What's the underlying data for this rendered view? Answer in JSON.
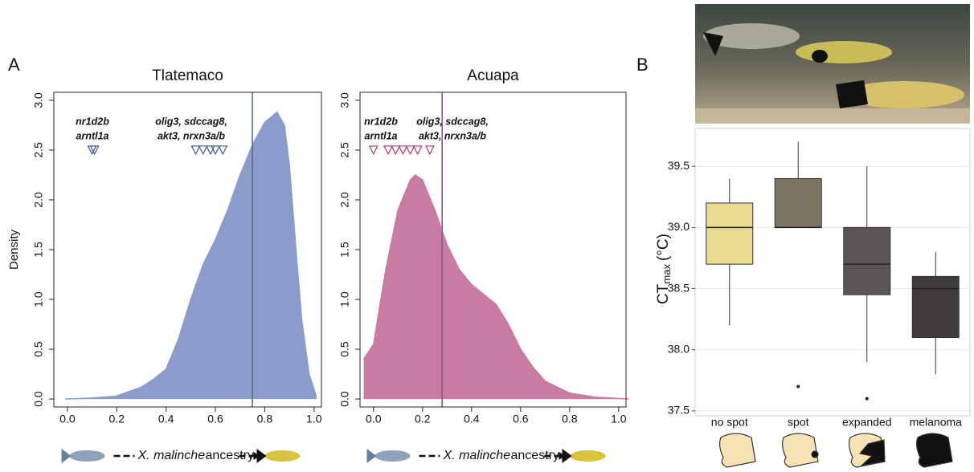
{
  "panel_labels": [
    "A",
    "B"
  ],
  "chart_data": [
    {
      "type": "density",
      "title": "Tlatemaco",
      "ylabel": "Density",
      "xlabel_species": "X. malinche",
      "xlabel": "ancestry",
      "color": "#8a9ccb",
      "line_color": "#5a6c86",
      "marker_color": "#3b5b99",
      "x": [
        -0.01,
        0.1,
        0.2,
        0.3,
        0.35,
        0.4,
        0.45,
        0.5,
        0.55,
        0.6,
        0.65,
        0.7,
        0.75,
        0.8,
        0.85,
        0.88,
        0.9,
        0.93,
        0.95,
        0.98,
        1.01
      ],
      "values": [
        0,
        0.01,
        0.03,
        0.12,
        0.2,
        0.3,
        0.6,
        1.0,
        1.35,
        1.6,
        1.9,
        2.25,
        2.55,
        2.78,
        2.88,
        2.75,
        2.35,
        1.4,
        0.8,
        0.25,
        0.02
      ],
      "vline": 0.75,
      "markers": [
        0.1,
        0.11,
        0.52,
        0.55,
        0.58,
        0.6,
        0.63
      ],
      "marker_y": 2.5,
      "annotations": [
        [
          "nr1d2b",
          "arntl1a"
        ],
        [
          "olig3, sdccag8,",
          "akt3, nrxn3a/b"
        ]
      ],
      "xlim": [
        -0.055,
        1.03
      ],
      "ylim": [
        -0.08,
        3.08
      ],
      "xticks": [
        {
          "value": 0,
          "label": "0.0"
        },
        0.2,
        0.4,
        0.6,
        0.8,
        {
          "value": 1,
          "label": "1.0"
        }
      ],
      "yticks": [
        {
          "value": 0,
          "label": "0.0"
        },
        0.5,
        {
          "value": 1,
          "label": "1.0"
        },
        1.5,
        {
          "value": 2,
          "label": "2.0"
        },
        2.5,
        {
          "value": 3,
          "label": "3.0"
        }
      ]
    },
    {
      "type": "density",
      "title": "Acuapa",
      "xlabel_species": "X. malinche",
      "xlabel": "ancestry",
      "color": "#c97ba4",
      "line_color": "#8a5a86",
      "marker_color": "#b03a72",
      "x": [
        -0.04,
        0,
        0.05,
        0.1,
        0.15,
        0.17,
        0.2,
        0.25,
        0.3,
        0.35,
        0.4,
        0.45,
        0.5,
        0.55,
        0.6,
        0.65,
        0.7,
        0.8,
        0.9,
        1.0,
        1.04
      ],
      "values": [
        0.4,
        0.55,
        1.3,
        1.9,
        2.2,
        2.25,
        2.2,
        1.9,
        1.55,
        1.3,
        1.15,
        1.05,
        0.95,
        0.75,
        0.5,
        0.32,
        0.18,
        0.06,
        0.02,
        0.005,
        0
      ],
      "vline": 0.28,
      "markers": [
        0,
        0.06,
        0.09,
        0.12,
        0.15,
        0.18,
        0.23
      ],
      "marker_y": 2.5,
      "annotations": [
        [
          "nr1d2b",
          "arntl1a"
        ],
        [
          "olig3, sdccag8,",
          "akt3, nrxn3a/b"
        ]
      ],
      "xlim": [
        -0.055,
        1.03
      ],
      "ylim": [
        -0.08,
        3.08
      ],
      "xticks": [
        {
          "value": 0,
          "label": "0.0"
        },
        0.2,
        0.4,
        0.6,
        0.8,
        {
          "value": 1,
          "label": "1.0"
        }
      ],
      "yticks": [
        {
          "value": 0,
          "label": "0.0"
        },
        0.5,
        {
          "value": 1,
          "label": "1.0"
        },
        1.5,
        {
          "value": 2,
          "label": "2.0"
        },
        2.5,
        {
          "value": 3,
          "label": "3.0"
        }
      ]
    },
    {
      "type": "box",
      "ylabel": "CT",
      "ylabel_sub": "max",
      "ylabel_unit": "(°C)",
      "categories": [
        "no spot",
        "spot",
        "expanded",
        "melanoma"
      ],
      "boxes": [
        {
          "low": 38.2,
          "q1": 38.7,
          "median": 39.0,
          "q3": 39.2,
          "high": 39.4,
          "outliers": [],
          "color": "#e8dc8e"
        },
        {
          "low": 39.0,
          "q1": 39.0,
          "median": 39.0,
          "q3": 39.4,
          "high": 39.7,
          "outliers": [
            37.7
          ],
          "color": "#7b7462"
        },
        {
          "low": 37.9,
          "q1": 38.45,
          "median": 38.7,
          "q3": 39.0,
          "high": 39.5,
          "outliers": [
            37.6
          ],
          "color": "#5b5559"
        },
        {
          "low": 37.8,
          "q1": 38.1,
          "median": 38.5,
          "q3": 38.6,
          "high": 38.8,
          "outliers": [],
          "color": "#403c3d"
        }
      ],
      "ylim": [
        37.46,
        39.81
      ],
      "grid": true,
      "yticks": [
        37.5,
        {
          "value": 38,
          "label": "38.0"
        },
        38.5,
        {
          "value": 39,
          "label": "39.0"
        },
        39.5
      ]
    }
  ]
}
